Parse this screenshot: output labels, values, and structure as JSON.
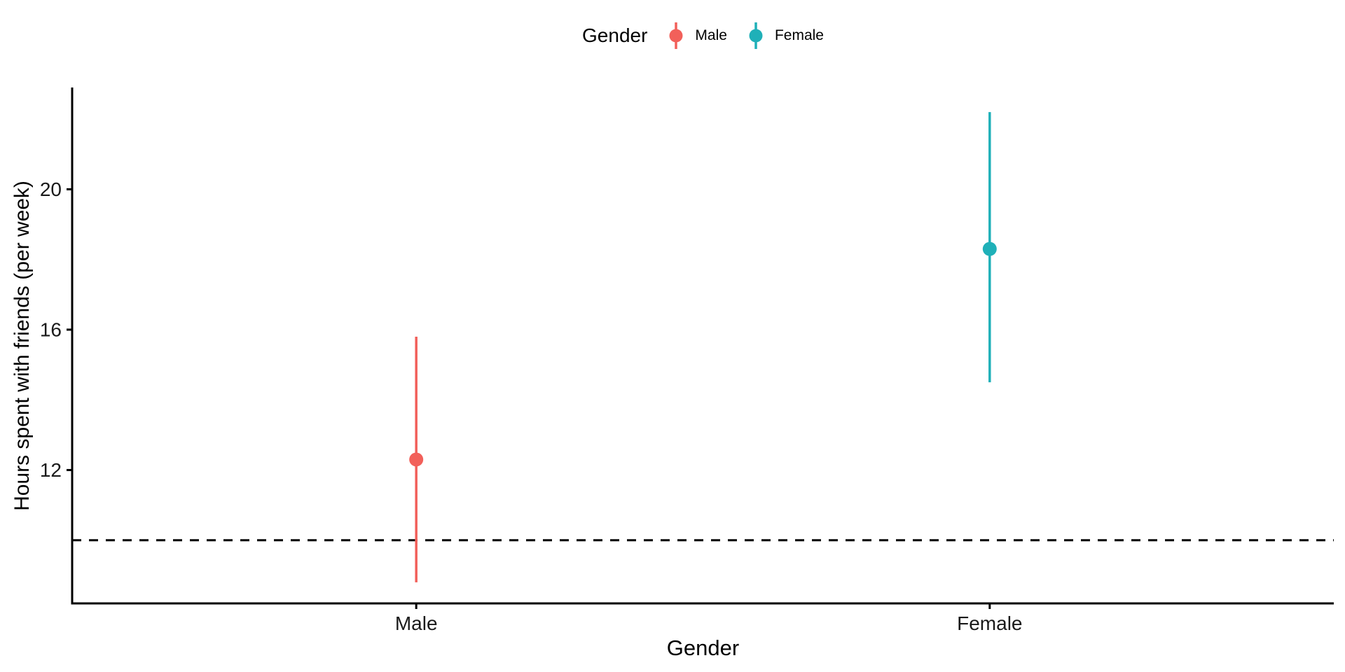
{
  "chart_data": {
    "type": "pointrange",
    "title": "",
    "xlabel": "Gender",
    "ylabel": "Hours spent with friends (per week)",
    "categories": [
      "Male",
      "Female"
    ],
    "series": [
      {
        "name": "Male",
        "x": "Male",
        "mean": 12.3,
        "lower": 8.8,
        "upper": 15.8,
        "color": "#F2605A"
      },
      {
        "name": "Female",
        "x": "Female",
        "mean": 18.3,
        "lower": 14.5,
        "upper": 22.2,
        "color": "#1FB0B8"
      }
    ],
    "reference_line": {
      "y": 10,
      "style": "dashed",
      "color": "#000000"
    },
    "y_ticks": [
      12,
      16,
      20
    ],
    "ylim": [
      8.2,
      22.9
    ],
    "grid": false,
    "legend": {
      "title": "Gender",
      "position": "top",
      "entries": [
        "Male",
        "Female"
      ]
    }
  }
}
